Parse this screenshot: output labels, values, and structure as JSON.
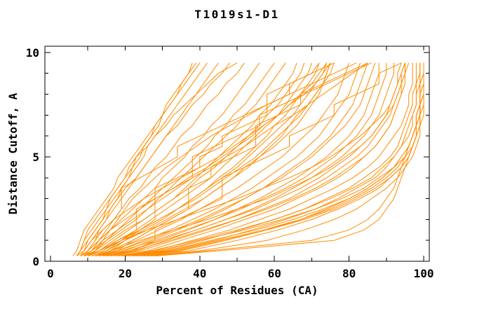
{
  "title": "T1019s1-D1",
  "chart_data": {
    "type": "line",
    "title": "T1019s1-D1",
    "xlabel": "Percent of Residues (CA)",
    "ylabel": "Distance Cutoff, A",
    "xlim": [
      0,
      100
    ],
    "ylim": [
      0,
      10
    ],
    "x_major_ticks": [
      0,
      20,
      40,
      60,
      80,
      100
    ],
    "x_minor_ticks": [
      10,
      30,
      50,
      70,
      90
    ],
    "x_tick_labels": [
      "0",
      "20",
      "40",
      "60",
      "80",
      "100"
    ],
    "y_major_ticks": [
      0,
      5,
      10
    ],
    "y_minor_ticks": [
      1,
      2,
      3,
      4,
      6,
      7,
      8,
      9
    ],
    "y_tick_labels": [
      "0",
      "5",
      "10"
    ],
    "grid": false,
    "legend": "none",
    "line_color": "#ff8c00",
    "axis_color": "#000000",
    "background_color": "#ffffff",
    "cutoffs": [
      0.25,
      0.5,
      1,
      1.5,
      2,
      2.5,
      3,
      3.5,
      4,
      4.5,
      5,
      5.5,
      6,
      6.5,
      7,
      7.5,
      8,
      8.5,
      9,
      9.5
    ],
    "curves": [
      [
        6,
        7,
        8,
        9,
        11,
        13,
        15,
        17,
        18,
        20,
        22,
        24,
        26,
        28,
        30,
        31,
        33,
        35,
        37,
        38
      ],
      [
        7,
        8,
        9,
        11,
        13,
        15,
        16,
        18,
        20,
        22,
        23,
        25,
        27,
        28,
        30,
        32,
        34,
        36,
        38,
        40
      ],
      [
        7,
        8,
        10,
        12,
        14,
        15,
        17,
        19,
        21,
        23,
        25,
        26,
        28,
        30,
        32,
        34,
        36,
        38,
        40,
        42
      ],
      [
        8,
        9,
        11,
        13,
        15,
        17,
        19,
        21,
        23,
        25,
        27,
        29,
        31,
        33,
        35,
        37,
        39,
        41,
        43,
        45
      ],
      [
        7,
        9,
        10,
        12,
        14,
        16,
        18,
        20,
        23,
        25,
        27,
        29,
        31,
        34,
        36,
        38,
        41,
        43,
        46,
        48
      ],
      [
        8,
        10,
        12,
        14,
        17,
        19,
        21,
        24,
        26,
        28,
        31,
        33,
        35,
        38,
        40,
        42,
        45,
        47,
        50,
        52
      ],
      [
        7,
        8,
        9,
        10,
        12,
        14,
        16,
        18,
        20,
        21,
        23,
        26,
        28,
        31,
        33,
        36,
        39,
        42,
        45,
        50
      ],
      [
        9,
        10,
        12,
        13,
        15,
        16,
        18,
        19,
        21,
        22,
        24,
        25,
        27,
        29,
        30,
        32,
        34,
        35,
        37,
        39
      ],
      [
        8,
        10,
        13,
        16,
        19,
        22,
        25,
        28,
        30,
        33,
        36,
        38,
        41,
        43,
        46,
        48,
        50,
        52,
        54,
        56
      ],
      [
        9,
        11,
        14,
        18,
        21,
        24,
        27,
        30,
        33,
        36,
        39,
        42,
        44,
        47,
        49,
        52,
        54,
        56,
        58,
        60
      ],
      [
        8,
        11,
        15,
        19,
        23,
        26,
        29,
        32,
        35,
        38,
        41,
        44,
        47,
        50,
        52,
        55,
        57,
        59,
        61,
        63
      ],
      [
        10,
        13,
        17,
        21,
        25,
        29,
        33,
        36,
        39,
        42,
        45,
        48,
        51,
        54,
        56,
        59,
        61,
        63,
        65,
        66
      ],
      [
        9,
        12,
        16,
        20,
        25,
        29,
        33,
        37,
        40,
        44,
        47,
        50,
        53,
        56,
        58,
        61,
        63,
        65,
        67,
        68
      ],
      [
        10,
        14,
        18,
        23,
        27,
        31,
        35,
        39,
        43,
        46,
        49,
        52,
        55,
        58,
        61,
        63,
        65,
        67,
        69,
        70
      ],
      [
        11,
        15,
        20,
        25,
        30,
        34,
        38,
        42,
        45,
        49,
        52,
        55,
        58,
        60,
        63,
        65,
        67,
        69,
        71,
        72
      ],
      [
        10,
        14,
        19,
        24,
        29,
        34,
        38,
        42,
        46,
        50,
        53,
        56,
        59,
        62,
        65,
        67,
        69,
        71,
        73,
        74
      ],
      [
        12,
        16,
        22,
        27,
        32,
        37,
        41,
        45,
        49,
        52,
        56,
        59,
        62,
        64,
        67,
        69,
        71,
        73,
        74,
        75
      ],
      [
        9,
        13,
        18,
        24,
        29,
        34,
        39,
        43,
        47,
        51,
        55,
        58,
        61,
        64,
        66,
        69,
        71,
        73,
        75,
        76
      ],
      [
        8,
        10,
        13,
        16,
        20,
        24,
        28,
        33,
        37,
        42,
        46,
        50,
        54,
        57,
        61,
        64,
        67,
        70,
        72,
        74
      ],
      [
        7,
        9,
        11,
        14,
        17,
        21,
        25,
        30,
        35,
        40,
        45,
        49,
        53,
        57,
        61,
        64,
        68,
        71,
        73,
        75
      ],
      [
        11,
        15,
        20,
        26,
        31,
        36,
        41,
        45,
        49,
        53,
        56,
        60,
        63,
        66,
        68,
        70,
        72,
        73,
        74,
        75
      ],
      [
        12,
        15,
        19,
        23,
        23,
        23,
        28,
        33,
        38,
        38,
        38,
        44,
        50,
        56,
        56,
        62,
        68,
        74,
        80,
        86
      ],
      [
        16,
        22,
        28,
        28,
        34,
        40,
        46,
        46,
        46,
        52,
        58,
        64,
        64,
        70,
        76,
        76,
        82,
        88,
        88,
        94
      ],
      [
        9,
        11,
        13,
        15,
        17,
        19,
        19,
        19,
        24,
        29,
        34,
        34,
        40,
        46,
        52,
        58,
        58,
        64,
        70,
        76
      ],
      [
        10,
        12,
        14,
        16,
        18,
        20,
        22,
        25,
        28,
        31,
        35,
        39,
        43,
        48,
        53,
        58,
        64,
        70,
        76,
        82
      ],
      [
        13,
        16,
        20,
        24,
        28,
        28,
        28,
        28,
        34,
        40,
        40,
        46,
        46,
        52,
        58,
        58,
        64,
        64,
        70,
        72
      ],
      [
        14,
        18,
        22,
        27,
        32,
        37,
        37,
        37,
        43,
        43,
        49,
        55,
        55,
        55,
        61,
        67,
        67,
        73,
        79,
        85
      ],
      [
        12,
        17,
        23,
        29,
        35,
        40,
        45,
        50,
        54,
        58,
        62,
        65,
        68,
        71,
        73,
        75,
        77,
        78,
        79,
        80
      ],
      [
        13,
        18,
        25,
        32,
        38,
        44,
        49,
        54,
        58,
        62,
        66,
        69,
        72,
        74,
        76,
        78,
        80,
        81,
        82,
        83
      ],
      [
        14,
        20,
        27,
        34,
        41,
        47,
        52,
        57,
        61,
        65,
        69,
        72,
        75,
        77,
        79,
        81,
        82,
        83,
        84,
        85
      ],
      [
        12,
        18,
        26,
        33,
        40,
        46,
        52,
        57,
        62,
        66,
        70,
        73,
        76,
        79,
        81,
        83,
        84,
        85,
        86,
        87
      ],
      [
        15,
        21,
        29,
        37,
        44,
        50,
        56,
        61,
        66,
        70,
        74,
        77,
        80,
        82,
        84,
        85,
        86,
        87,
        88,
        88
      ],
      [
        13,
        19,
        28,
        36,
        44,
        51,
        57,
        63,
        68,
        72,
        76,
        79,
        82,
        84,
        86,
        87,
        88,
        89,
        90,
        90
      ],
      [
        16,
        23,
        31,
        39,
        47,
        54,
        60,
        65,
        70,
        74,
        78,
        81,
        84,
        86,
        88,
        89,
        90,
        91,
        92,
        92
      ],
      [
        14,
        21,
        30,
        39,
        47,
        55,
        61,
        67,
        72,
        76,
        80,
        83,
        86,
        88,
        90,
        91,
        92,
        93,
        93,
        94
      ],
      [
        17,
        24,
        33,
        42,
        50,
        57,
        64,
        69,
        74,
        78,
        82,
        85,
        87,
        89,
        91,
        92,
        93,
        94,
        94,
        95
      ],
      [
        15,
        22,
        32,
        41,
        50,
        58,
        65,
        71,
        76,
        80,
        84,
        87,
        89,
        91,
        92,
        93,
        94,
        94,
        95,
        95
      ],
      [
        12,
        16,
        24,
        33,
        42,
        50,
        58,
        64,
        70,
        75,
        79,
        83,
        86,
        88,
        90,
        92,
        93,
        94,
        95,
        95
      ],
      [
        10,
        13,
        19,
        26,
        34,
        42,
        50,
        57,
        64,
        70,
        75,
        79,
        83,
        86,
        89,
        91,
        92,
        93,
        94,
        95
      ],
      [
        18,
        26,
        35,
        44,
        52,
        60,
        66,
        72,
        77,
        81,
        84,
        87,
        89,
        91,
        92,
        93,
        94,
        95,
        95,
        96
      ],
      [
        9,
        12,
        15,
        18,
        22,
        26,
        30,
        34,
        38,
        43,
        47,
        52,
        56,
        60,
        65,
        69,
        73,
        77,
        81,
        85
      ],
      [
        19,
        28,
        38,
        48,
        56,
        64,
        70,
        76,
        81,
        85,
        88,
        90,
        92,
        94,
        95,
        96,
        96,
        97,
        97,
        97
      ],
      [
        20,
        30,
        41,
        51,
        60,
        68,
        74,
        80,
        84,
        88,
        91,
        93,
        94,
        95,
        96,
        97,
        97,
        98,
        98,
        98
      ],
      [
        22,
        32,
        44,
        54,
        63,
        71,
        77,
        82,
        87,
        90,
        92,
        94,
        96,
        97,
        97,
        98,
        98,
        98,
        99,
        99
      ],
      [
        18,
        27,
        39,
        50,
        60,
        68,
        75,
        81,
        86,
        89,
        92,
        94,
        95,
        96,
        97,
        98,
        98,
        99,
        99,
        99
      ],
      [
        24,
        35,
        47,
        58,
        67,
        74,
        80,
        85,
        89,
        92,
        94,
        96,
        97,
        98,
        98,
        99,
        99,
        99,
        100,
        100
      ],
      [
        21,
        31,
        43,
        55,
        65,
        73,
        80,
        85,
        89,
        92,
        95,
        96,
        97,
        98,
        99,
        99,
        100,
        100,
        100,
        100
      ],
      [
        25,
        37,
        50,
        61,
        70,
        77,
        83,
        88,
        91,
        94,
        96,
        97,
        98,
        99,
        99,
        100,
        100,
        100,
        100,
        100
      ],
      [
        23,
        34,
        46,
        58,
        68,
        76,
        82,
        87,
        91,
        94,
        96,
        97,
        98,
        99,
        99,
        99,
        100,
        100,
        100,
        100
      ],
      [
        26,
        40,
        58,
        68,
        76,
        82,
        86,
        90,
        93,
        95,
        97,
        98,
        99,
        99,
        100,
        100,
        100,
        100,
        100,
        100
      ],
      [
        28,
        45,
        76,
        84,
        88,
        90,
        92,
        93,
        94,
        95,
        96,
        97,
        98,
        98,
        99,
        99,
        100,
        100,
        100,
        100
      ],
      [
        27,
        42,
        70,
        80,
        85,
        88,
        90,
        92,
        93,
        94,
        95,
        96,
        97,
        98,
        98,
        99,
        99,
        100,
        100,
        100
      ],
      [
        20,
        29,
        40,
        52,
        62,
        71,
        78,
        84,
        88,
        92,
        94,
        96,
        97,
        98,
        98,
        99,
        99,
        99,
        100,
        100
      ],
      [
        22,
        33,
        45,
        57,
        67,
        75,
        81,
        86,
        90,
        93,
        95,
        97,
        98,
        98,
        99,
        99,
        99,
        100,
        100,
        100
      ]
    ]
  }
}
